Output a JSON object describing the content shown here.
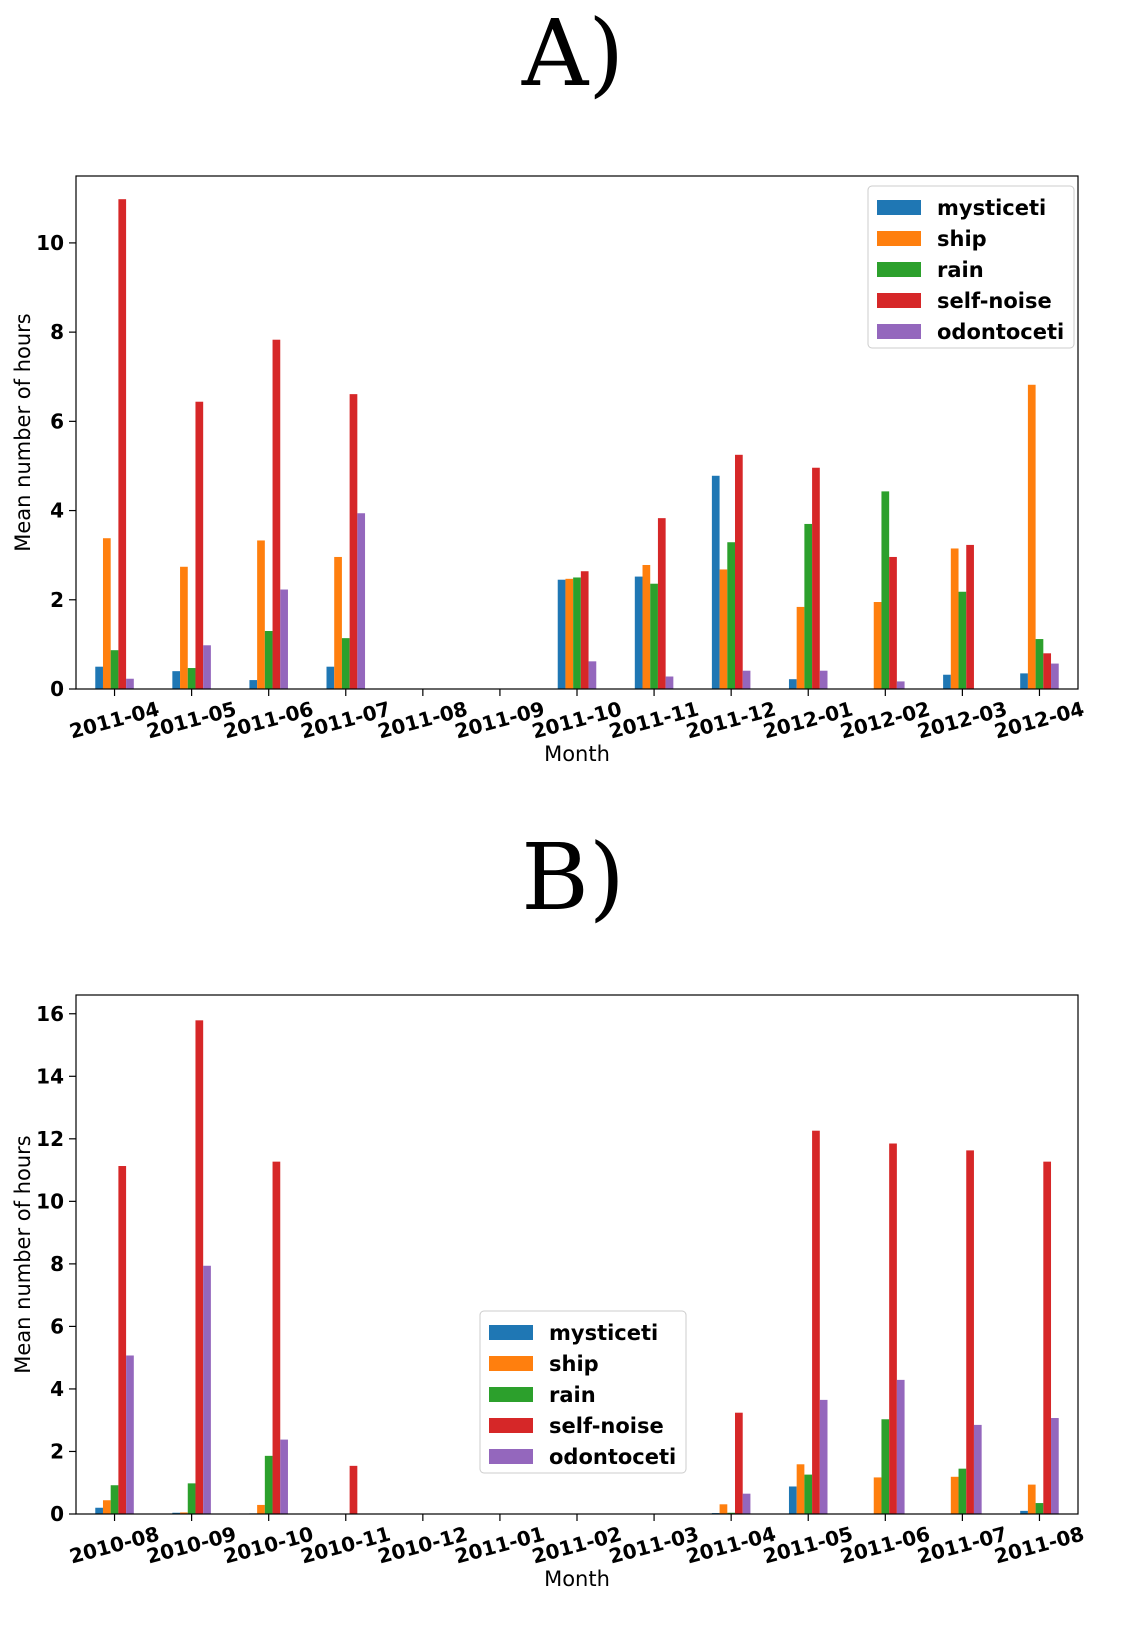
{
  "panels": {
    "a": {
      "label": "A)"
    },
    "b": {
      "label": "B)"
    }
  },
  "colors": {
    "mysticeti": "#1f77b4",
    "ship": "#ff7f0e",
    "rain": "#2ca02c",
    "self-noise": "#d62728",
    "odontoceti": "#9467bd"
  },
  "chart_data": [
    {
      "type": "bar",
      "title": "A)",
      "xlabel": "Month",
      "ylabel": "Mean number of hours",
      "ylim": [
        0,
        11.5
      ],
      "yticks": [
        0,
        2,
        4,
        6,
        8,
        10
      ],
      "legend_position": "top-right",
      "categories": [
        "2011-04",
        "2011-05",
        "2011-06",
        "2011-07",
        "2011-08",
        "2011-09",
        "2011-10",
        "2011-11",
        "2011-12",
        "2012-01",
        "2012-02",
        "2012-03",
        "2012-04"
      ],
      "series": [
        {
          "name": "mysticeti",
          "values": [
            0.5,
            0.4,
            0.2,
            0.5,
            0,
            0,
            2.45,
            2.52,
            4.78,
            0.22,
            0,
            0.32,
            0.35
          ]
        },
        {
          "name": "ship",
          "values": [
            3.38,
            2.74,
            3.33,
            2.96,
            0,
            0,
            2.47,
            2.78,
            2.68,
            1.84,
            1.95,
            3.15,
            6.82
          ]
        },
        {
          "name": "rain",
          "values": [
            0.87,
            0.47,
            1.3,
            1.14,
            0,
            0,
            2.5,
            2.36,
            3.29,
            3.7,
            4.43,
            2.18,
            1.12
          ]
        },
        {
          "name": "self-noise",
          "values": [
            10.98,
            6.44,
            7.83,
            6.61,
            0,
            0,
            2.64,
            3.83,
            5.25,
            4.96,
            2.96,
            3.23,
            0.8
          ]
        },
        {
          "name": "odontoceti",
          "values": [
            0.23,
            0.98,
            2.23,
            3.94,
            0,
            0,
            0.62,
            0.28,
            0.41,
            0.41,
            0.17,
            0,
            0.57
          ]
        }
      ]
    },
    {
      "type": "bar",
      "title": "B)",
      "xlabel": "Month",
      "ylabel": "Mean number of hours",
      "ylim": [
        0,
        16.6
      ],
      "yticks": [
        0,
        2,
        4,
        6,
        8,
        10,
        12,
        14,
        16
      ],
      "legend_position": "lower-center",
      "categories": [
        "2010-08",
        "2010-09",
        "2010-10",
        "2010-11",
        "2010-12",
        "2011-01",
        "2011-02",
        "2011-03",
        "2011-04",
        "2011-05",
        "2011-06",
        "2011-07",
        "2011-08"
      ],
      "series": [
        {
          "name": "mysticeti",
          "values": [
            0.2,
            0.04,
            0.02,
            0,
            0,
            0,
            0,
            0,
            0.03,
            0.88,
            0,
            0,
            0.1
          ]
        },
        {
          "name": "ship",
          "values": [
            0.44,
            0.05,
            0.29,
            0,
            0,
            0,
            0,
            0,
            0.31,
            1.59,
            1.17,
            1.19,
            0.94
          ]
        },
        {
          "name": "rain",
          "values": [
            0.92,
            0.98,
            1.86,
            0,
            0,
            0,
            0,
            0,
            0.04,
            1.26,
            3.03,
            1.45,
            0.35
          ]
        },
        {
          "name": "self-noise",
          "values": [
            11.13,
            15.79,
            11.27,
            1.54,
            0,
            0,
            0,
            0,
            3.24,
            12.26,
            11.85,
            11.63,
            11.27
          ]
        },
        {
          "name": "odontoceti",
          "values": [
            5.07,
            7.94,
            2.38,
            0,
            0,
            0,
            0,
            0,
            0.65,
            3.65,
            4.29,
            2.85,
            3.07
          ]
        }
      ]
    }
  ]
}
